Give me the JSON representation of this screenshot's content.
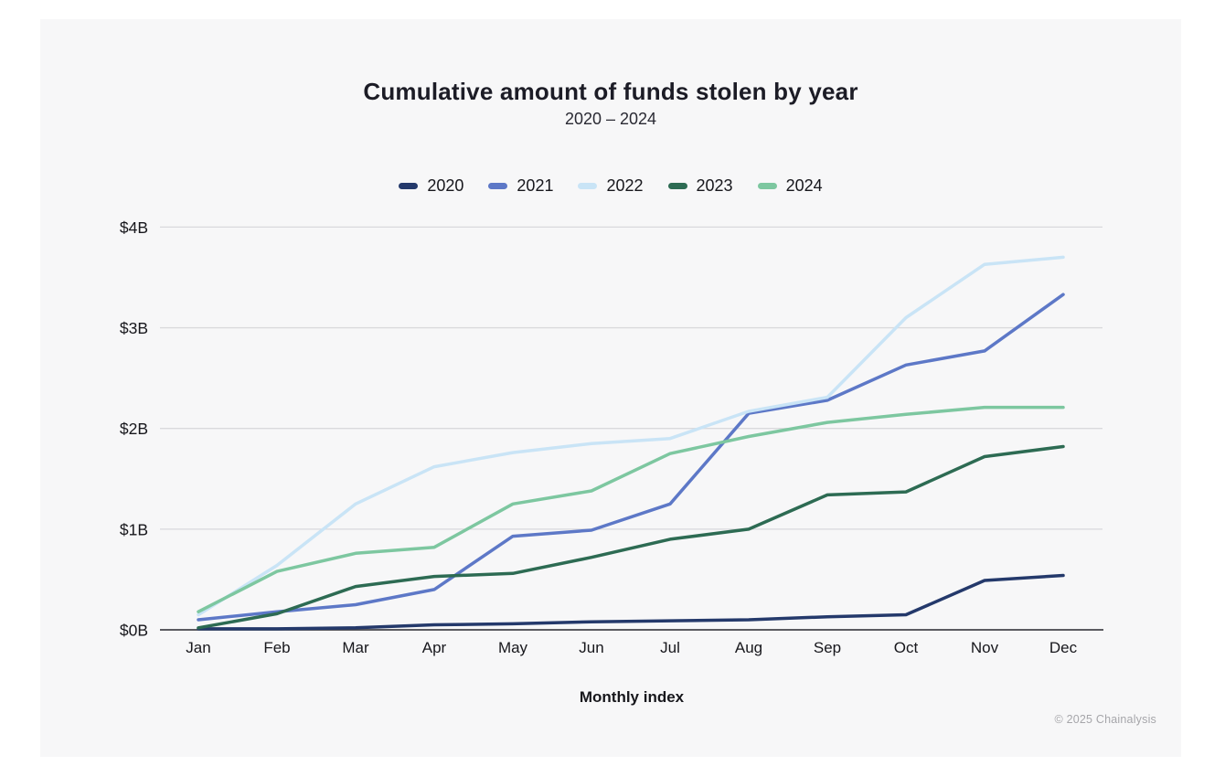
{
  "header": {
    "title": "Cumulative amount of funds stolen by year",
    "subtitle": "2020 – 2024"
  },
  "legend": [
    {
      "label": "2020",
      "color": "#24396b"
    },
    {
      "label": "2021",
      "color": "#5d78c7"
    },
    {
      "label": "2022",
      "color": "#c9e4f6"
    },
    {
      "label": "2023",
      "color": "#2d6b53"
    },
    {
      "label": "2024",
      "color": "#7dc7a0"
    }
  ],
  "chart_data": {
    "type": "line",
    "title": "Cumulative amount of funds stolen by year",
    "subtitle": "2020 – 2024",
    "xlabel": "Monthly index",
    "ylabel": "",
    "unit": "USD billions",
    "categories": [
      "Jan",
      "Feb",
      "Mar",
      "Apr",
      "May",
      "Jun",
      "Jul",
      "Aug",
      "Sep",
      "Oct",
      "Nov",
      "Dec"
    ],
    "y_ticks": [
      "$0B",
      "$1B",
      "$2B",
      "$3B",
      "$4B"
    ],
    "ylim": [
      0,
      4
    ],
    "grid": true,
    "legend_position": "top",
    "series": [
      {
        "name": "2020",
        "color": "#24396b",
        "values": [
          0.01,
          0.01,
          0.02,
          0.05,
          0.06,
          0.08,
          0.09,
          0.1,
          0.13,
          0.15,
          0.49,
          0.54
        ]
      },
      {
        "name": "2021",
        "color": "#5d78c7",
        "values": [
          0.1,
          0.18,
          0.25,
          0.4,
          0.93,
          0.99,
          1.25,
          2.15,
          2.28,
          2.63,
          2.77,
          3.33
        ]
      },
      {
        "name": "2022",
        "color": "#c9e4f6",
        "values": [
          0.15,
          0.64,
          1.25,
          1.62,
          1.76,
          1.85,
          1.9,
          2.17,
          2.31,
          3.1,
          3.63,
          3.7
        ]
      },
      {
        "name": "2023",
        "color": "#2d6b53",
        "values": [
          0.02,
          0.16,
          0.43,
          0.53,
          0.56,
          0.72,
          0.9,
          1.0,
          1.34,
          1.37,
          1.72,
          1.82
        ]
      },
      {
        "name": "2024",
        "color": "#7dc7a0",
        "values": [
          0.18,
          0.58,
          0.76,
          0.82,
          1.25,
          1.38,
          1.75,
          1.92,
          2.06,
          2.14,
          2.21,
          2.21
        ]
      }
    ],
    "colors": {
      "panel_background": "#f7f7f8",
      "gridline": "#d9d9dc",
      "axis_line": "#45454a",
      "tick_label": "#17171c"
    }
  },
  "footer": {
    "copyright": "© 2025 Chainalysis"
  }
}
